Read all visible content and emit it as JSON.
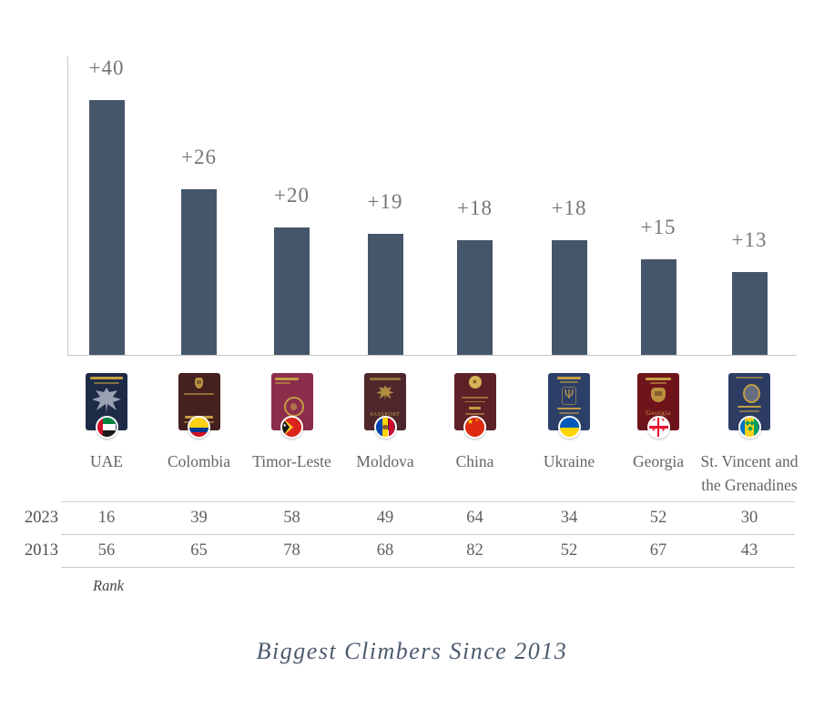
{
  "title": "Biggest Climbers Since 2013",
  "chart_data": {
    "type": "bar",
    "title": "Biggest Climbers Since 2013",
    "categories": [
      "UAE",
      "Colombia",
      "Timor-Leste",
      "Moldova",
      "China",
      "Ukraine",
      "Georgia",
      "St. Vincent and the Grenadines"
    ],
    "values": [
      40,
      26,
      20,
      19,
      18,
      18,
      15,
      13
    ],
    "bar_labels": [
      "+40",
      "+26",
      "+20",
      "+19",
      "+18",
      "+18",
      "+15",
      "+13"
    ],
    "xlabel": "",
    "ylabel": "",
    "ylim": [
      0,
      47
    ],
    "grid": false,
    "legend": false,
    "bar_color": "#45566a",
    "table": {
      "rows": [
        {
          "label": "2023",
          "values": [
            16,
            39,
            58,
            49,
            64,
            34,
            52,
            30
          ]
        },
        {
          "label": "2013",
          "values": [
            56,
            65,
            78,
            68,
            82,
            52,
            67,
            43
          ]
        }
      ],
      "footnote": "Rank"
    }
  },
  "countries": [
    {
      "name": "UAE",
      "delta_label": "+40",
      "rank_2023": 16,
      "rank_2013": 56,
      "flag": "uae",
      "passport_color": "#1e2b47",
      "icon": "uae-passport-icon"
    },
    {
      "name": "Colombia",
      "delta_label": "+26",
      "rank_2023": 39,
      "rank_2013": 65,
      "flag": "colombia",
      "passport_color": "#44201f",
      "cover_text": "PASAPORTE",
      "icon": "colombia-passport-icon"
    },
    {
      "name": "Timor-Leste",
      "delta_label": "+20",
      "rank_2023": 58,
      "rank_2013": 78,
      "flag": "timor",
      "passport_color": "#8c2d4c",
      "icon": "timor-leste-passport-icon"
    },
    {
      "name": "Moldova",
      "delta_label": "+19",
      "rank_2023": 49,
      "rank_2013": 68,
      "flag": "moldova",
      "passport_color": "#4d272b",
      "cover_text": "PASSPORT",
      "icon": "moldova-passport-icon"
    },
    {
      "name": "China",
      "delta_label": "+18",
      "rank_2023": 64,
      "rank_2013": 82,
      "flag": "china",
      "passport_color": "#5d2127",
      "cover_text": "PASSPORT",
      "icon": "china-passport-icon"
    },
    {
      "name": "Ukraine",
      "delta_label": "+18",
      "rank_2023": 34,
      "rank_2013": 52,
      "flag": "ukraine",
      "passport_color": "#2c3f69",
      "cover_text": "UKRAINE PASSPORT",
      "icon": "ukraine-passport-icon"
    },
    {
      "name": "Georgia",
      "delta_label": "+15",
      "rank_2023": 52,
      "rank_2013": 67,
      "flag": "georgia",
      "passport_color": "#70141c",
      "cover_text": "Georgia",
      "icon": "georgia-passport-icon"
    },
    {
      "name": "St. Vincent and the Grenadines",
      "delta_label": "+13",
      "rank_2023": 30,
      "rank_2013": 43,
      "flag": "stvincent",
      "passport_color": "#2c3c63",
      "icon": "st-vincent-passport-icon"
    }
  ],
  "colors": {
    "bar": "#45566a",
    "axis": "#c6c6c6",
    "value_label": "#757575",
    "country_label": "#646464",
    "table_text": "#606060",
    "table_line": "#cccccc",
    "title": "#4c5b6e",
    "passport_gold": "#c29c43"
  }
}
